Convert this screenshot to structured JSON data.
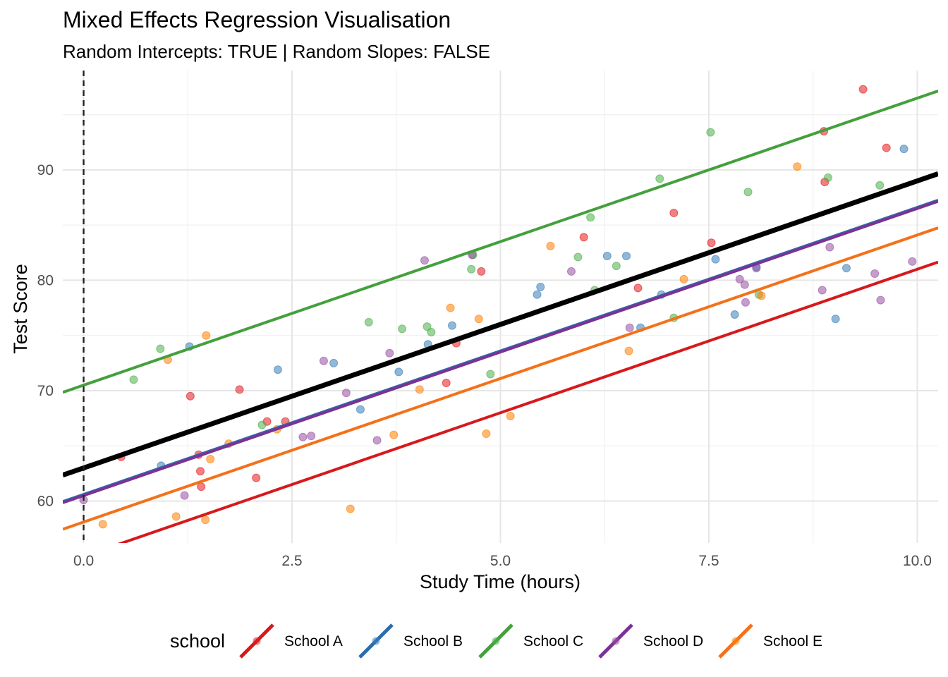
{
  "chart_data": {
    "type": "scatter",
    "title": "Mixed Effects Regression Visualisation",
    "subtitle": "Random Intercepts: TRUE | Random Slopes: FALSE",
    "xlabel": "Study Time (hours)",
    "ylabel": "Test Score",
    "xlim": [
      -0.25,
      10.25
    ],
    "ylim": [
      56.2,
      99.0
    ],
    "x_ticks": [
      0,
      2.5,
      5,
      7.5,
      10
    ],
    "x_tick_labels": [
      "0.0",
      "2.5",
      "5.0",
      "7.5",
      "10.0"
    ],
    "y_ticks": [
      60,
      70,
      80,
      90
    ],
    "y_tick_labels": [
      "60",
      "70",
      "80",
      "90"
    ],
    "grid": true,
    "reference_line": {
      "type": "vertical",
      "x": 0,
      "style": "dashed"
    },
    "legend": {
      "title": "school",
      "position": "bottom"
    },
    "fixed_effect_line": {
      "intercept": 63.0,
      "slope": 2.6,
      "color": "#000000"
    },
    "series": [
      {
        "name": "School A",
        "color": "#E41A1C",
        "line_color": "#D7191C",
        "line": {
          "intercept": 55.0,
          "slope": 2.6
        },
        "points": [
          [
            0.45,
            64.0
          ],
          [
            1.28,
            69.5
          ],
          [
            1.38,
            64.2
          ],
          [
            1.4,
            62.7
          ],
          [
            1.41,
            61.3
          ],
          [
            1.87,
            70.1
          ],
          [
            2.07,
            62.1
          ],
          [
            2.2,
            67.2
          ],
          [
            2.42,
            67.2
          ],
          [
            4.35,
            70.7
          ],
          [
            4.47,
            74.3
          ],
          [
            4.77,
            80.8
          ],
          [
            6.0,
            83.9
          ],
          [
            6.65,
            79.3
          ],
          [
            7.08,
            86.1
          ],
          [
            7.53,
            83.4
          ],
          [
            8.88,
            93.5
          ],
          [
            8.89,
            88.9
          ],
          [
            9.35,
            97.3
          ],
          [
            9.63,
            92.0
          ]
        ]
      },
      {
        "name": "School B",
        "color": "#377EB8",
        "line_color": "#2C6BAC",
        "line": {
          "intercept": 60.6,
          "slope": 2.6
        },
        "points": [
          [
            0.93,
            63.2
          ],
          [
            1.27,
            74.0
          ],
          [
            2.33,
            71.9
          ],
          [
            3.0,
            72.5
          ],
          [
            3.32,
            68.3
          ],
          [
            3.78,
            71.7
          ],
          [
            4.13,
            74.2
          ],
          [
            4.42,
            75.9
          ],
          [
            5.44,
            78.7
          ],
          [
            5.48,
            79.4
          ],
          [
            6.28,
            82.2
          ],
          [
            6.51,
            82.2
          ],
          [
            6.68,
            75.7
          ],
          [
            6.93,
            78.7
          ],
          [
            7.58,
            81.9
          ],
          [
            7.81,
            76.9
          ],
          [
            8.07,
            81.1
          ],
          [
            9.02,
            76.5
          ],
          [
            9.15,
            81.1
          ],
          [
            9.84,
            91.9
          ]
        ]
      },
      {
        "name": "School C",
        "color": "#4DAF4A",
        "line_color": "#44A03D",
        "line": {
          "intercept": 70.5,
          "slope": 2.6
        },
        "points": [
          [
            0.6,
            71.0
          ],
          [
            0.92,
            73.8
          ],
          [
            2.14,
            66.9
          ],
          [
            3.42,
            76.2
          ],
          [
            3.82,
            75.6
          ],
          [
            4.12,
            75.8
          ],
          [
            4.17,
            75.3
          ],
          [
            4.65,
            81.0
          ],
          [
            4.67,
            82.3
          ],
          [
            4.88,
            71.5
          ],
          [
            5.93,
            82.1
          ],
          [
            6.08,
            85.7
          ],
          [
            6.13,
            79.1
          ],
          [
            6.39,
            81.3
          ],
          [
            6.91,
            89.2
          ],
          [
            7.08,
            76.6
          ],
          [
            7.52,
            93.4
          ],
          [
            7.97,
            88.0
          ],
          [
            8.1,
            78.7
          ],
          [
            8.93,
            89.3
          ],
          [
            9.55,
            88.6
          ]
        ]
      },
      {
        "name": "School D",
        "color": "#984EA3",
        "line_color": "#7B3294",
        "line": {
          "intercept": 60.5,
          "slope": 2.6
        },
        "points": [
          [
            0.0,
            60.1
          ],
          [
            1.21,
            60.5
          ],
          [
            2.63,
            65.8
          ],
          [
            2.73,
            65.9
          ],
          [
            2.88,
            72.7
          ],
          [
            3.15,
            69.8
          ],
          [
            3.52,
            65.5
          ],
          [
            3.67,
            73.4
          ],
          [
            4.09,
            81.8
          ],
          [
            4.66,
            82.3
          ],
          [
            5.85,
            80.8
          ],
          [
            6.55,
            75.7
          ],
          [
            7.87,
            80.1
          ],
          [
            7.93,
            79.6
          ],
          [
            7.94,
            78.0
          ],
          [
            8.07,
            81.2
          ],
          [
            8.86,
            79.1
          ],
          [
            8.95,
            83.0
          ],
          [
            9.49,
            80.6
          ],
          [
            9.56,
            78.2
          ],
          [
            9.94,
            81.7
          ]
        ]
      },
      {
        "name": "School E",
        "color": "#FF7F00",
        "line_color": "#F4711A",
        "line": {
          "intercept": 58.1,
          "slope": 2.6
        },
        "points": [
          [
            0.23,
            57.9
          ],
          [
            1.01,
            72.8
          ],
          [
            1.11,
            58.6
          ],
          [
            1.46,
            58.3
          ],
          [
            1.47,
            75.0
          ],
          [
            1.52,
            63.8
          ],
          [
            1.74,
            65.2
          ],
          [
            2.32,
            66.5
          ],
          [
            3.2,
            59.3
          ],
          [
            3.72,
            66.0
          ],
          [
            4.03,
            70.1
          ],
          [
            4.4,
            77.5
          ],
          [
            4.74,
            76.5
          ],
          [
            4.83,
            66.1
          ],
          [
            5.12,
            67.7
          ],
          [
            5.6,
            83.1
          ],
          [
            6.54,
            73.6
          ],
          [
            7.2,
            80.1
          ],
          [
            8.13,
            78.6
          ],
          [
            8.56,
            90.3
          ]
        ]
      }
    ]
  }
}
